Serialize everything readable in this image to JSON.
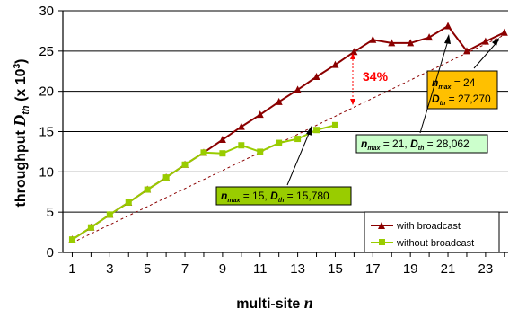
{
  "chart_data": {
    "type": "line",
    "xlabel": "multi-site",
    "xlabel_var": "n",
    "ylabel": "throughput",
    "ylabel_var": "D",
    "ylabel_sub": "th",
    "ylabel_unit": "(x 10",
    "ylabel_exp": "3",
    "ylabel_close": ")",
    "xlim": [
      0.5,
      24.2
    ],
    "ylim": [
      0,
      30
    ],
    "x_ticks": [
      1,
      3,
      5,
      7,
      9,
      11,
      13,
      15,
      17,
      19,
      21,
      23
    ],
    "y_ticks": [
      0,
      5,
      10,
      15,
      20,
      25,
      30
    ],
    "grid": "horizontal",
    "legend_position": "bottom-right",
    "series": [
      {
        "name": "with broadcast",
        "color": "#8b0000",
        "marker": "triangle",
        "x": [
          1,
          2,
          3,
          4,
          5,
          6,
          7,
          8,
          9,
          10,
          11,
          12,
          13,
          14,
          15,
          16,
          17,
          18,
          19,
          20,
          21,
          22,
          23,
          24
        ],
        "values": [
          1.6,
          3.1,
          4.7,
          6.2,
          7.8,
          9.3,
          10.9,
          12.4,
          14.0,
          15.6,
          17.1,
          18.7,
          20.2,
          21.8,
          23.3,
          24.9,
          26.4,
          26.0,
          26.0,
          26.7,
          28.1,
          25.0,
          26.2,
          27.3
        ]
      },
      {
        "name": "without broadcast",
        "color": "#99cc00",
        "marker": "square",
        "x": [
          1,
          2,
          3,
          4,
          5,
          6,
          7,
          8,
          9,
          10,
          11,
          12,
          13,
          14,
          15
        ],
        "values": [
          1.6,
          3.1,
          4.7,
          6.2,
          7.8,
          9.3,
          10.9,
          12.4,
          12.3,
          13.3,
          12.5,
          13.6,
          14.1,
          15.2,
          15.8
        ]
      }
    ],
    "reference_line": {
      "color": "#8b0000",
      "style": "dashed",
      "x": [
        1,
        24
      ],
      "values": [
        1.2,
        27.0
      ]
    },
    "annotations": {
      "gap_label": "34%",
      "box_orange": {
        "line1_var": "n",
        "line1_sub": "max",
        "line1_val": " = 24",
        "line2_var": "D",
        "line2_sub": "th",
        "line2_val": " = 27,270",
        "fill": "#ffc000"
      },
      "box_green_light": {
        "var1": "n",
        "sub1": "max",
        "val1": " = 21, ",
        "var2": "D",
        "sub2": "th",
        "val2": " = 28,062",
        "fill": "#ccffcc"
      },
      "box_green_dark": {
        "var1": "n",
        "sub1": "max",
        "val1": " = 15, ",
        "var2": "D",
        "sub2": "th",
        "val2": " = 15,780",
        "fill": "#99cc00"
      }
    }
  }
}
